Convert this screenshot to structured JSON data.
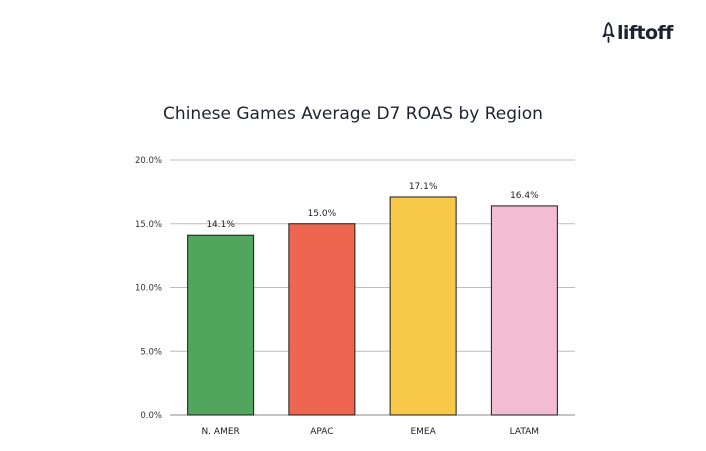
{
  "brand": {
    "name": "liftoff",
    "icon": "rocket-icon",
    "color": "#1e2130"
  },
  "chart_data": {
    "type": "bar",
    "title": "Chinese Games Average D7 ROAS by Region",
    "xlabel": "",
    "ylabel": "",
    "categories": [
      "N. AMER",
      "APAC",
      "EMEA",
      "LATAM"
    ],
    "values": [
      14.1,
      15.0,
      17.1,
      16.4
    ],
    "value_labels": [
      "14.1%",
      "15.0%",
      "17.1%",
      "16.4%"
    ],
    "colors": [
      "#52a55c",
      "#ee6650",
      "#f8c848",
      "#f2bdd2"
    ],
    "ylim": [
      0,
      20
    ],
    "yticks": [
      0,
      5,
      10,
      15,
      20
    ],
    "ytick_labels": [
      "0.0%",
      "5.0%",
      "10.0%",
      "15.0%",
      "20.0%"
    ],
    "grid": true,
    "legend": "none"
  }
}
